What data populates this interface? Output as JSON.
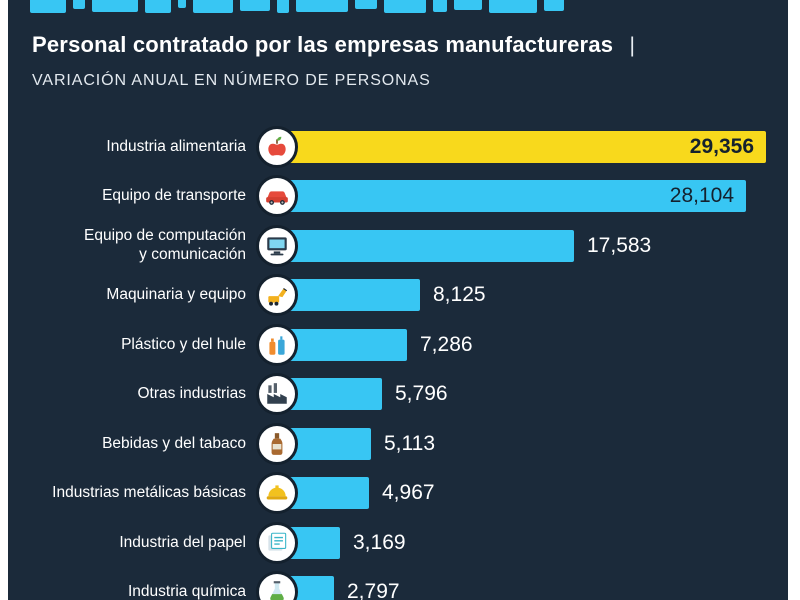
{
  "header": {
    "title": "Personal contratado por las empresas manufactureras",
    "title_separator": "|",
    "subtitle": "VARIACIÓN ANUAL EN NÚMERO DE PERSONAS"
  },
  "colors": {
    "background": "#1b2a3a",
    "page_margin": "#ffffff",
    "bar": "#38c6f3",
    "highlight_bar": "#f8d91c",
    "cropped_headline": "#38c6f3",
    "label_text": "#ffffff",
    "value_dark": "#14212e"
  },
  "chart_data": {
    "type": "bar",
    "orientation": "horizontal",
    "title": "Personal contratado por las empresas manufactureras",
    "subtitle": "VARIACIÓN ANUAL EN NÚMERO DE PERSONAS",
    "xlim": [
      0,
      29356
    ],
    "grid": false,
    "legend": "none",
    "categories": [
      "Industria alimentaria",
      "Equipo de transporte",
      "Equipo de computación y comunicación",
      "Maquinaria y equipo",
      "Plástico y del hule",
      "Otras industrias",
      "Bebidas y del tabaco",
      "Industrias metálicas básicas",
      "Industria del papel",
      "Industria química"
    ],
    "values": [
      29356,
      28104,
      17583,
      8125,
      7286,
      5796,
      5113,
      4967,
      3169,
      2797
    ],
    "rows": [
      {
        "label": "Industria alimentaria",
        "value": 29356,
        "value_label": "29,356",
        "icon": "food-icon",
        "bar_color": "#f8d91c",
        "value_position": "inside",
        "value_color": "#14212e",
        "value_weight": 700
      },
      {
        "label": "Equipo de transporte",
        "value": 28104,
        "value_label": "28,104",
        "icon": "car-icon",
        "bar_color": "#38c6f3",
        "value_position": "inside",
        "value_color": "#14212e",
        "value_weight": 400
      },
      {
        "label": "Equipo de computación\ny comunicación",
        "value": 17583,
        "value_label": "17,583",
        "icon": "computer-icon",
        "bar_color": "#38c6f3",
        "value_position": "outside",
        "value_color": "#ffffff",
        "value_weight": 400
      },
      {
        "label": "Maquinaria y equipo",
        "value": 8125,
        "value_label": "8,125",
        "icon": "machinery-icon",
        "bar_color": "#38c6f3",
        "value_position": "outside",
        "value_color": "#ffffff",
        "value_weight": 400
      },
      {
        "label": "Plástico y del hule",
        "value": 7286,
        "value_label": "7,286",
        "icon": "plastic-icon",
        "bar_color": "#38c6f3",
        "value_position": "outside",
        "value_color": "#ffffff",
        "value_weight": 400
      },
      {
        "label": "Otras industrias",
        "value": 5796,
        "value_label": "5,796",
        "icon": "factory-icon",
        "bar_color": "#38c6f3",
        "value_position": "outside",
        "value_color": "#ffffff",
        "value_weight": 400
      },
      {
        "label": "Bebidas y del tabaco",
        "value": 5113,
        "value_label": "5,113",
        "icon": "bottle-icon",
        "bar_color": "#38c6f3",
        "value_position": "outside",
        "value_color": "#ffffff",
        "value_weight": 400
      },
      {
        "label": "Industrias metálicas básicas",
        "value": 4967,
        "value_label": "4,967",
        "icon": "helmet-icon",
        "bar_color": "#38c6f3",
        "value_position": "outside",
        "value_color": "#ffffff",
        "value_weight": 400
      },
      {
        "label": "Industria del papel",
        "value": 3169,
        "value_label": "3,169",
        "icon": "paper-icon",
        "bar_color": "#38c6f3",
        "value_position": "outside",
        "value_color": "#ffffff",
        "value_weight": 400
      },
      {
        "label": "Industria química",
        "value": 2797,
        "value_label": "2,797",
        "icon": "chemical-icon",
        "bar_color": "#38c6f3",
        "value_position": "outside",
        "value_color": "#ffffff",
        "value_weight": 400
      }
    ]
  }
}
